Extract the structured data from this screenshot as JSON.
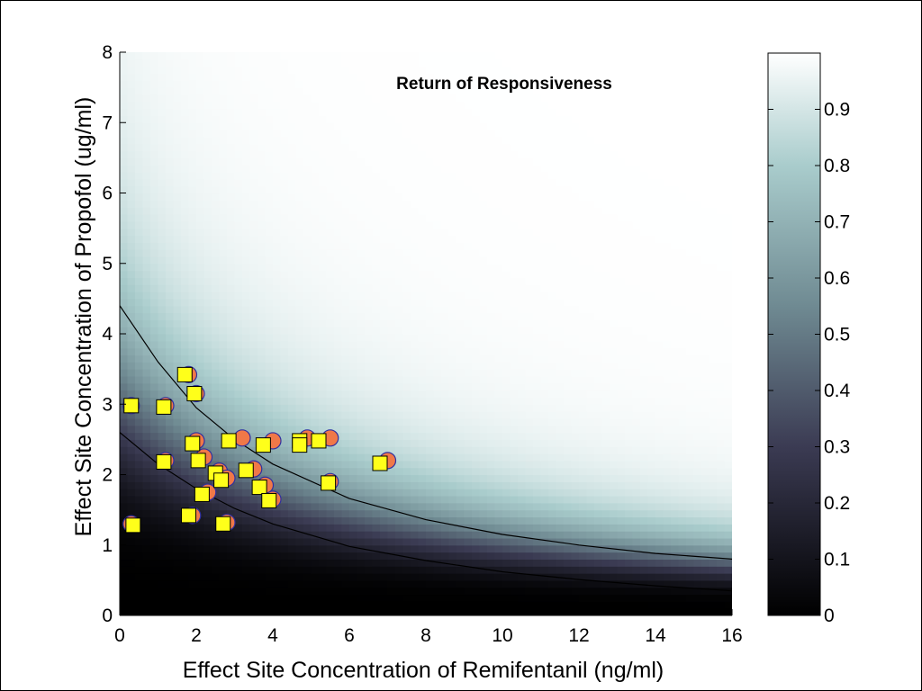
{
  "chart_data": {
    "type": "heatmap",
    "title": "Return of Responsiveness",
    "xlabel": "Effect Site Concentration of Remifentanil (ng/ml)",
    "ylabel": "Effect Site Concentration of Propofol (ug/ml)",
    "xlim": [
      0,
      16
    ],
    "ylim": [
      0,
      8
    ],
    "xticks": [
      "0",
      "2",
      "4",
      "6",
      "8",
      "10",
      "12",
      "14",
      "16"
    ],
    "yticks": [
      "0",
      "1",
      "2",
      "3",
      "4",
      "5",
      "6",
      "7",
      "8"
    ],
    "colorbar": {
      "range": [
        0,
        1
      ],
      "ticks": [
        "0",
        "0.1",
        "0.2",
        "0.3",
        "0.4",
        "0.5",
        "0.6",
        "0.7",
        "0.8",
        "0.9"
      ]
    },
    "contours": [
      {
        "level": 0.05,
        "points": [
          [
            0,
            2.6
          ],
          [
            1,
            2.15
          ],
          [
            2,
            1.8
          ],
          [
            3,
            1.52
          ],
          [
            4,
            1.3
          ],
          [
            6,
            0.98
          ],
          [
            8,
            0.78
          ],
          [
            10,
            0.62
          ],
          [
            12,
            0.51
          ],
          [
            14,
            0.42
          ],
          [
            16,
            0.35
          ]
        ]
      },
      {
        "level": 0.95,
        "points": [
          [
            0,
            4.4
          ],
          [
            1,
            3.6
          ],
          [
            2,
            2.95
          ],
          [
            3,
            2.5
          ],
          [
            4,
            2.15
          ],
          [
            6,
            1.66
          ],
          [
            8,
            1.36
          ],
          [
            10,
            1.15
          ],
          [
            12,
            1.0
          ],
          [
            14,
            0.88
          ],
          [
            16,
            0.8
          ]
        ]
      }
    ],
    "points_responsive": [
      [
        0.3,
        2.98
      ],
      [
        1.2,
        2.98
      ],
      [
        1.8,
        3.42
      ],
      [
        2.0,
        3.15
      ],
      [
        2.0,
        2.48
      ],
      [
        2.2,
        2.25
      ],
      [
        1.2,
        2.2
      ],
      [
        2.6,
        2.05
      ],
      [
        2.8,
        1.95
      ],
      [
        2.3,
        1.75
      ],
      [
        3.2,
        2.52
      ],
      [
        4.0,
        2.48
      ],
      [
        4.9,
        2.52
      ],
      [
        5.5,
        2.52
      ],
      [
        3.5,
        2.08
      ],
      [
        3.8,
        1.85
      ],
      [
        4.0,
        1.65
      ],
      [
        5.5,
        1.9
      ],
      [
        7.0,
        2.2
      ],
      [
        0.3,
        1.3
      ],
      [
        1.9,
        1.42
      ],
      [
        2.8,
        1.32
      ]
    ],
    "points_unresponsive": [
      [
        0.3,
        2.98
      ],
      [
        1.15,
        2.96
      ],
      [
        1.7,
        3.42
      ],
      [
        1.95,
        3.15
      ],
      [
        1.9,
        2.44
      ],
      [
        2.05,
        2.2
      ],
      [
        1.15,
        2.18
      ],
      [
        2.5,
        2.02
      ],
      [
        2.65,
        1.92
      ],
      [
        2.15,
        1.72
      ],
      [
        2.85,
        2.48
      ],
      [
        3.75,
        2.42
      ],
      [
        4.7,
        2.48
      ],
      [
        4.7,
        2.42
      ],
      [
        5.2,
        2.48
      ],
      [
        3.3,
        2.06
      ],
      [
        3.65,
        1.82
      ],
      [
        3.9,
        1.63
      ],
      [
        5.45,
        1.88
      ],
      [
        6.8,
        2.16
      ],
      [
        0.35,
        1.28
      ],
      [
        1.8,
        1.42
      ],
      [
        2.7,
        1.3
      ]
    ]
  }
}
